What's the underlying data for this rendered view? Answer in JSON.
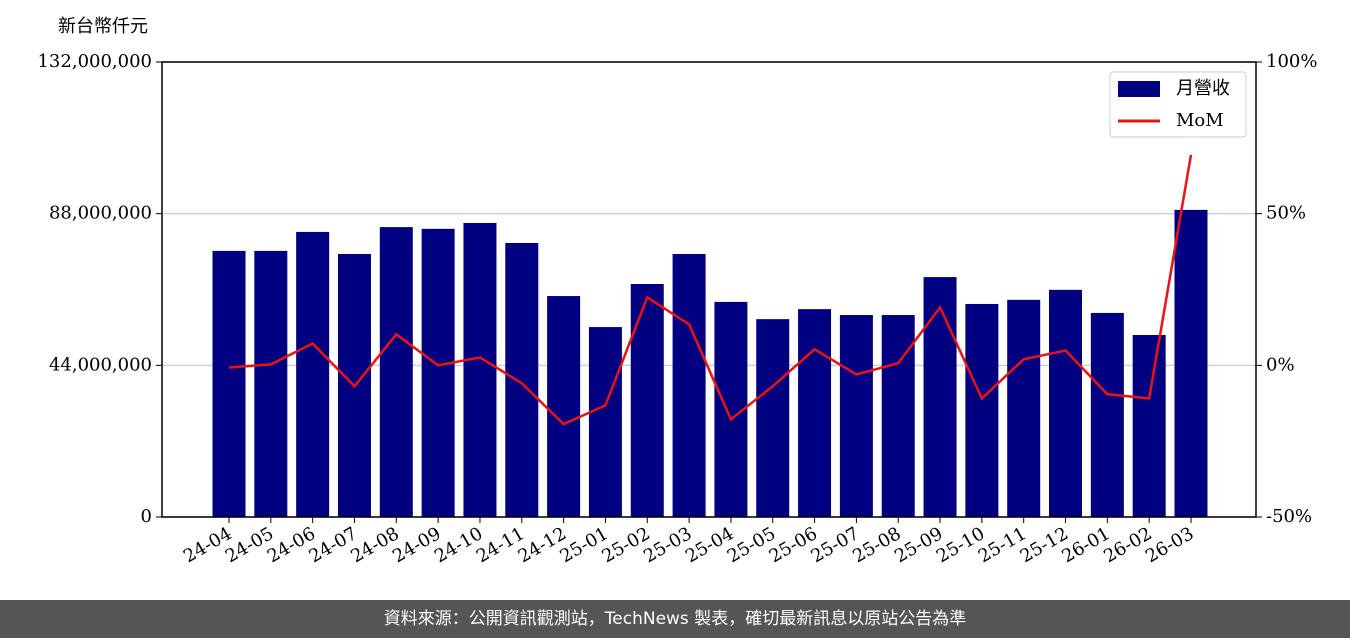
{
  "chart_data": {
    "type": "bar",
    "y_axis_label": "新台幣仟元",
    "categories": [
      "24-04",
      "24-05",
      "24-06",
      "24-07",
      "24-08",
      "24-09",
      "24-10",
      "24-11",
      "24-12",
      "25-01",
      "25-02",
      "25-03",
      "25-04",
      "25-05",
      "25-06",
      "25-07",
      "25-08",
      "25-09",
      "25-10",
      "25-11",
      "25-12",
      "26-01",
      "26-02",
      "26-03"
    ],
    "series": [
      {
        "name": "月營收",
        "type": "bar",
        "color": "#000080",
        "values": [
          77200000,
          77200000,
          82700000,
          76300000,
          84100000,
          83600000,
          85300000,
          79500000,
          64100000,
          55100000,
          67600000,
          76300000,
          62400000,
          57400000,
          60300000,
          58600000,
          58600000,
          69600000,
          61800000,
          63000000,
          65900000,
          59200000,
          52800000,
          89100000
        ]
      },
      {
        "name": "MoM",
        "type": "line",
        "axis": "y2",
        "color": "#ee1111",
        "values": [
          -0.7,
          0.3,
          7.2,
          -6.9,
          10.2,
          0,
          2.6,
          -5.9,
          -19.4,
          -13.2,
          22.4,
          13.5,
          -17.8,
          -6.9,
          5.3,
          -3.0,
          0.7,
          19.1,
          -10.9,
          2.0,
          4.9,
          -9.5,
          -10.9,
          69.4
        ]
      }
    ],
    "ylim": [
      0,
      132000000
    ],
    "yticks": [
      0,
      {
        "value": 44000000,
        "label": "44,000,000"
      },
      {
        "value": 88000000,
        "label": "88,000,000"
      },
      {
        "value": 132000000,
        "label": "132,000,000"
      }
    ],
    "y2lim": [
      -50,
      100
    ],
    "y2ticks": [
      {
        "value": -50,
        "label": "-50%"
      },
      {
        "value": 0,
        "label": "0%"
      },
      {
        "value": 50,
        "label": "50%"
      },
      {
        "value": 100,
        "label": "100%"
      }
    ],
    "grid": true,
    "legend": "upper right"
  },
  "footer": "資料來源：公開資訊觀測站，TechNews 製表，確切最新訊息以原站公告為準"
}
